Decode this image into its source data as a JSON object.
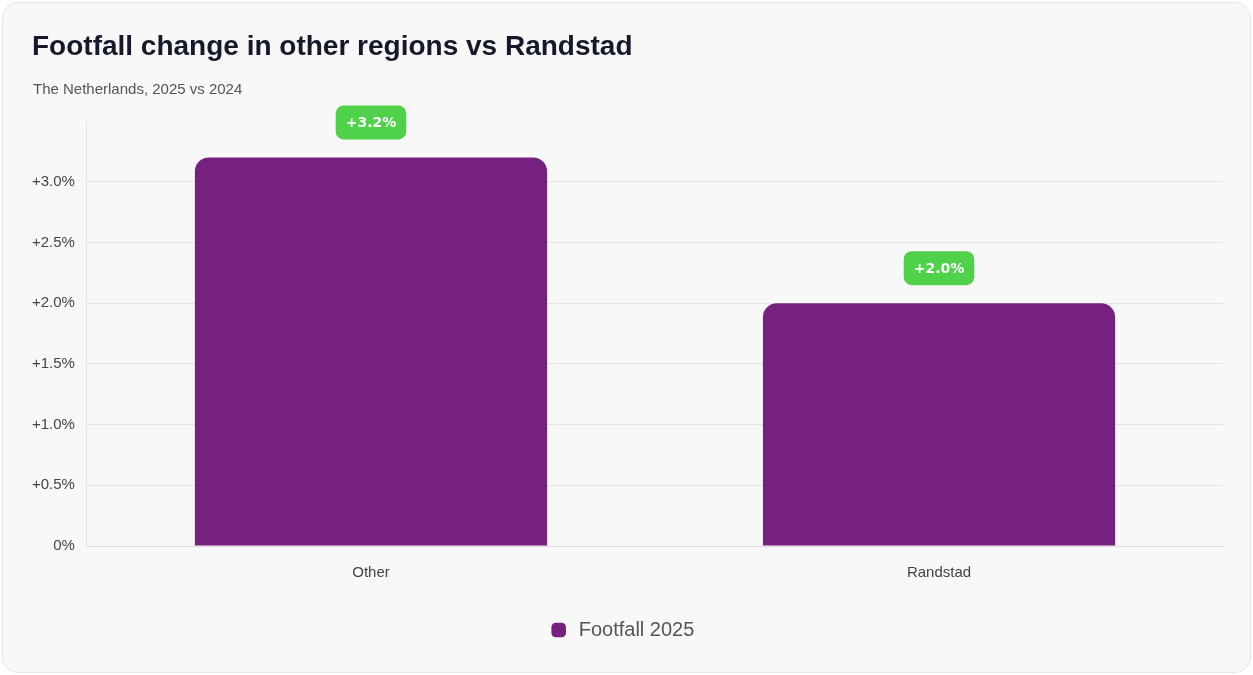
{
  "chart_data": {
    "type": "bar",
    "title": "Footfall change in other regions vs Randstad",
    "subtitle": "The Netherlands, 2025 vs 2024",
    "categories": [
      "Other",
      "Randstad"
    ],
    "series": [
      {
        "name": "Footfall 2025",
        "color": "#76207f",
        "values": [
          3.2,
          2.0
        ]
      }
    ],
    "value_labels": [
      "+3.2%",
      "+2.0%"
    ],
    "yticks": [
      {
        "value": 0,
        "label": "0%"
      },
      {
        "value": 0.5,
        "label": "+0.5%"
      },
      {
        "value": 1,
        "label": "+1.0%"
      },
      {
        "value": 1.5,
        "label": "+1.5%"
      },
      {
        "value": 2,
        "label": "+2.0%"
      },
      {
        "value": 2.5,
        "label": "+2.5%"
      },
      {
        "value": 3,
        "label": "+3.0%"
      }
    ],
    "ylim": [
      0,
      3.5
    ],
    "grid": "y",
    "legend": "bottom"
  }
}
